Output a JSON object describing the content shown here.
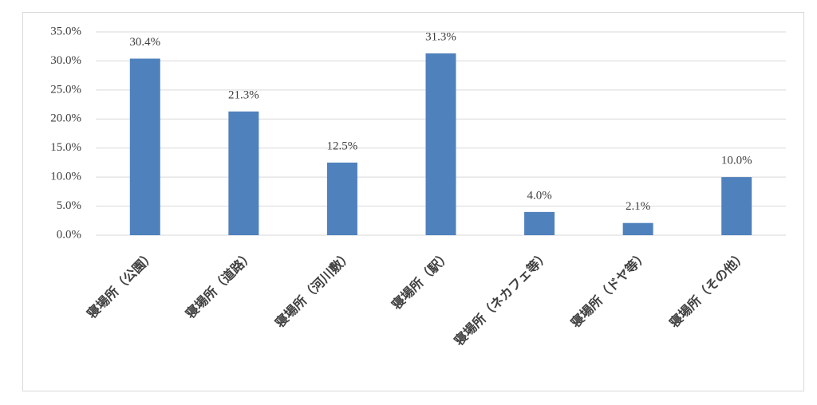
{
  "chart_data": {
    "type": "bar",
    "categories": [
      "寝場所（公園）",
      "寝場所（道路）",
      "寝場所（河川敷）",
      "寝場所（駅）",
      "寝場所（ネカフェ等）",
      "寝場所（ドヤ等）",
      "寝場所（その他）"
    ],
    "values": [
      30.4,
      21.3,
      12.5,
      31.3,
      4.0,
      2.1,
      10.0
    ],
    "value_labels": [
      "30.4%",
      "21.3%",
      "12.5%",
      "31.3%",
      "4.0%",
      "2.1%",
      "10.0%"
    ],
    "color": "#4f81bd",
    "ylim": [
      0,
      35
    ],
    "yticks": [
      {
        "value": 0,
        "label": "0.0%"
      },
      {
        "value": 5,
        "label": "5.0%"
      },
      {
        "value": 10,
        "label": "10.0%"
      },
      {
        "value": 15,
        "label": "15.0%"
      },
      {
        "value": 20,
        "label": "20.0%"
      },
      {
        "value": 25,
        "label": "25.0%"
      },
      {
        "value": 30,
        "label": "30.0%"
      },
      {
        "value": 35,
        "label": "35.0%"
      }
    ],
    "grid": true
  }
}
